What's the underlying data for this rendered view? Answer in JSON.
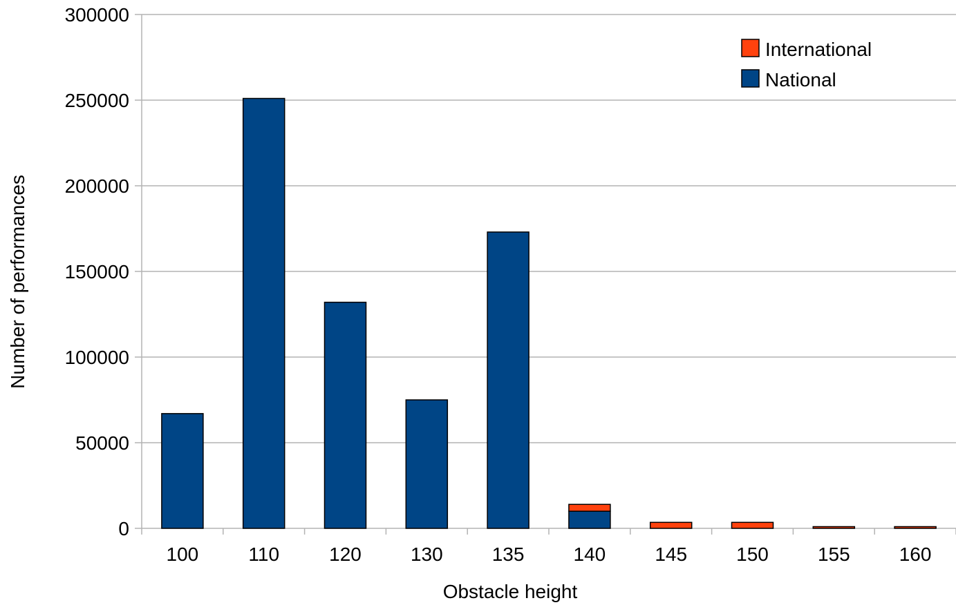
{
  "chart_data": {
    "type": "bar",
    "stacked": true,
    "title": "",
    "xlabel": "Obstacle height",
    "ylabel": "Number of performances",
    "categories": [
      "100",
      "110",
      "120",
      "130",
      "135",
      "140",
      "145",
      "150",
      "155",
      "160"
    ],
    "series": [
      {
        "name": "National",
        "color": "#004586",
        "values": [
          67000,
          251000,
          132000,
          75000,
          173000,
          10000,
          0,
          0,
          0,
          0
        ]
      },
      {
        "name": "International",
        "color": "#ff420e",
        "values": [
          0,
          0,
          0,
          0,
          0,
          4000,
          3500,
          3500,
          1000,
          1000
        ]
      }
    ],
    "ylim": [
      0,
      300000
    ],
    "yticks": [
      0,
      50000,
      100000,
      150000,
      200000,
      250000,
      300000
    ],
    "grid": "horizontal",
    "legend": {
      "position": "top-right",
      "order": [
        "International",
        "National"
      ]
    }
  }
}
